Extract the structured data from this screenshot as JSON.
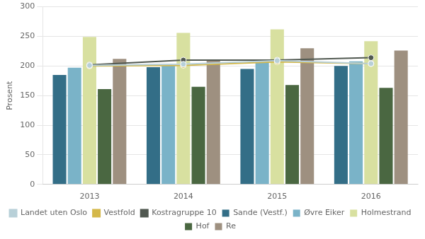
{
  "chart_data": {
    "type": "bar",
    "categories": [
      "2013",
      "2014",
      "2015",
      "2016"
    ],
    "series": [
      {
        "name": "Sande (Vestf.)",
        "type": "bar",
        "color": "#336e87",
        "values": [
          185,
          198,
          195,
          200
        ]
      },
      {
        "name": "Øvre Eiker",
        "type": "bar",
        "color": "#7ab3c8",
        "values": [
          197,
          201,
          207,
          208
        ]
      },
      {
        "name": "Holmestrand",
        "type": "bar",
        "color": "#d8e0a0",
        "values": [
          249,
          256,
          262,
          242
        ]
      },
      {
        "name": "Hof",
        "type": "bar",
        "color": "#4a6741",
        "values": [
          161,
          165,
          168,
          163
        ]
      },
      {
        "name": "Re",
        "type": "bar",
        "color": "#9e9080",
        "values": [
          212,
          211,
          230,
          226
        ]
      },
      {
        "name": "Landet uten Oslo",
        "type": "line",
        "marker": "circle",
        "color": "#b8d0d8",
        "values": [
          201,
          203,
          209,
          204
        ]
      },
      {
        "name": "Vestfold",
        "type": "line",
        "marker": "circle",
        "color": "#d4b84a",
        "values": [
          200,
          201,
          207,
          204
        ]
      },
      {
        "name": "Kostragruppe 10",
        "type": "line",
        "marker": "circle",
        "color": "#505850",
        "values": [
          202,
          210,
          210,
          214
        ]
      }
    ],
    "ylabel": "Prosent",
    "ylim": [
      0,
      300
    ],
    "yticks": [
      0,
      50,
      100,
      150,
      200,
      250,
      300
    ],
    "grid": true,
    "legend": "bottom"
  }
}
